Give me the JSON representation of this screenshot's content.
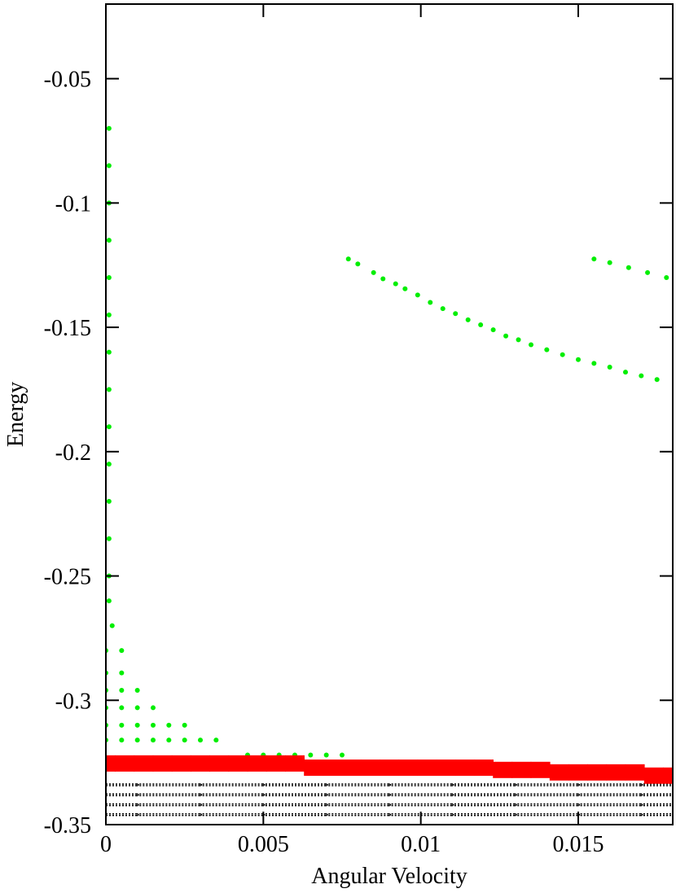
{
  "chart_data": {
    "type": "scatter",
    "xlabel": "Angular Velocity",
    "ylabel": "Energy",
    "xlim": [
      0,
      0.018
    ],
    "ylim": [
      -0.35,
      -0.02
    ],
    "xticks": [
      0,
      0.005,
      0.01,
      0.015
    ],
    "yticks": [
      -0.35,
      -0.3,
      -0.25,
      -0.2,
      -0.15,
      -0.1,
      -0.05
    ],
    "grid": false,
    "series": [
      {
        "color": "#000000",
        "marker": "dot",
        "x": [
          0,
          0.002,
          0.004,
          0.006,
          0.008,
          0.01,
          0.012,
          0.014,
          0.016,
          0.018,
          0,
          0.002,
          0.004,
          0.006,
          0.008,
          0.01,
          0.012,
          0.014,
          0.016,
          0.018,
          0,
          0.002,
          0.004,
          0.006,
          0.008,
          0.01,
          0.012,
          0.014,
          0.016,
          0.018,
          0,
          0.002,
          0.004,
          0.006,
          0.008,
          0.01,
          0.012,
          0.014,
          0.016,
          0.018
        ],
        "values": [
          -0.334,
          -0.334,
          -0.334,
          -0.334,
          -0.334,
          -0.334,
          -0.334,
          -0.334,
          -0.334,
          -0.334,
          -0.338,
          -0.338,
          -0.338,
          -0.338,
          -0.338,
          -0.338,
          -0.338,
          -0.338,
          -0.338,
          -0.338,
          -0.342,
          -0.342,
          -0.342,
          -0.342,
          -0.342,
          -0.342,
          -0.342,
          -0.342,
          -0.342,
          -0.342,
          -0.346,
          -0.346,
          -0.346,
          -0.346,
          -0.346,
          -0.346,
          -0.346,
          -0.346,
          -0.346,
          -0.346
        ]
      },
      {
        "color": "#00ee00",
        "marker": "circle",
        "x": [
          0.0001,
          0.0001,
          0.0001,
          0.0001,
          0.0001,
          0.0001,
          0.0001,
          0.0001,
          0.0001,
          0.0001,
          0.0001,
          0.0001,
          0.0001,
          0.0001,
          0.0002,
          0,
          0.0005,
          0,
          0.0005,
          0,
          0.0005,
          0.001,
          0,
          0.0005,
          0.001,
          0.0015,
          0,
          0.0005,
          0.001,
          0.0015,
          0.002,
          0.0025,
          0,
          0.0005,
          0.001,
          0.0015,
          0.002,
          0.0025,
          0.003,
          0.0035,
          0.0045,
          0.005,
          0.0055,
          0.006,
          0.0065,
          0.007,
          0.0075,
          0.0077,
          0.008,
          0.0085,
          0.0088,
          0.0092,
          0.0095,
          0.0099,
          0.0103,
          0.0107,
          0.0111,
          0.0115,
          0.0119,
          0.0123,
          0.0127,
          0.0131,
          0.0135,
          0.014,
          0.0145,
          0.015,
          0.0155,
          0.016,
          0.0165,
          0.017,
          0.0175,
          0.0155,
          0.016,
          0.0166,
          0.0172,
          0.0178
        ],
        "values": [
          -0.07,
          -0.085,
          -0.1,
          -0.115,
          -0.13,
          -0.145,
          -0.16,
          -0.175,
          -0.19,
          -0.205,
          -0.22,
          -0.235,
          -0.25,
          -0.26,
          -0.27,
          -0.28,
          -0.28,
          -0.289,
          -0.289,
          -0.296,
          -0.296,
          -0.296,
          -0.303,
          -0.303,
          -0.303,
          -0.303,
          -0.31,
          -0.31,
          -0.31,
          -0.31,
          -0.31,
          -0.31,
          -0.316,
          -0.316,
          -0.316,
          -0.316,
          -0.316,
          -0.316,
          -0.316,
          -0.316,
          -0.322,
          -0.322,
          -0.322,
          -0.322,
          -0.322,
          -0.322,
          -0.322,
          -0.1225,
          -0.1245,
          -0.128,
          -0.1305,
          -0.1325,
          -0.1345,
          -0.137,
          -0.14,
          -0.1425,
          -0.1445,
          -0.147,
          -0.149,
          -0.151,
          -0.1535,
          -0.155,
          -0.157,
          -0.159,
          -0.161,
          -0.163,
          -0.1645,
          -0.166,
          -0.168,
          -0.1695,
          -0.171,
          -0.1225,
          -0.124,
          -0.126,
          -0.128,
          -0.13
        ]
      },
      {
        "color": "#ff0000",
        "marker": "rect",
        "x": [
          0,
          0.0006,
          0.0012,
          0.0018,
          0.0024,
          0.003,
          0.0036,
          0.0042,
          0.0048,
          0.0054,
          0.006,
          0.0066,
          0.0072,
          0.0078,
          0.0084,
          0.009,
          0.0096,
          0.0102,
          0.0108,
          0.0114,
          0.012,
          0.0126,
          0.0132,
          0.0138,
          0.0144,
          0.015,
          0.0156,
          0.0162,
          0.0168,
          0.0174,
          0.018
        ],
        "values": [
          -0.3254,
          -0.3254,
          -0.3254,
          -0.3254,
          -0.3254,
          -0.3254,
          -0.3254,
          -0.3254,
          -0.3254,
          -0.3254,
          -0.3254,
          -0.3271,
          -0.3271,
          -0.3271,
          -0.3271,
          -0.3271,
          -0.3271,
          -0.3271,
          -0.3271,
          -0.3271,
          -0.3271,
          -0.328,
          -0.328,
          -0.328,
          -0.329,
          -0.329,
          -0.329,
          -0.329,
          -0.329,
          -0.3303,
          -0.3303
        ]
      }
    ]
  }
}
